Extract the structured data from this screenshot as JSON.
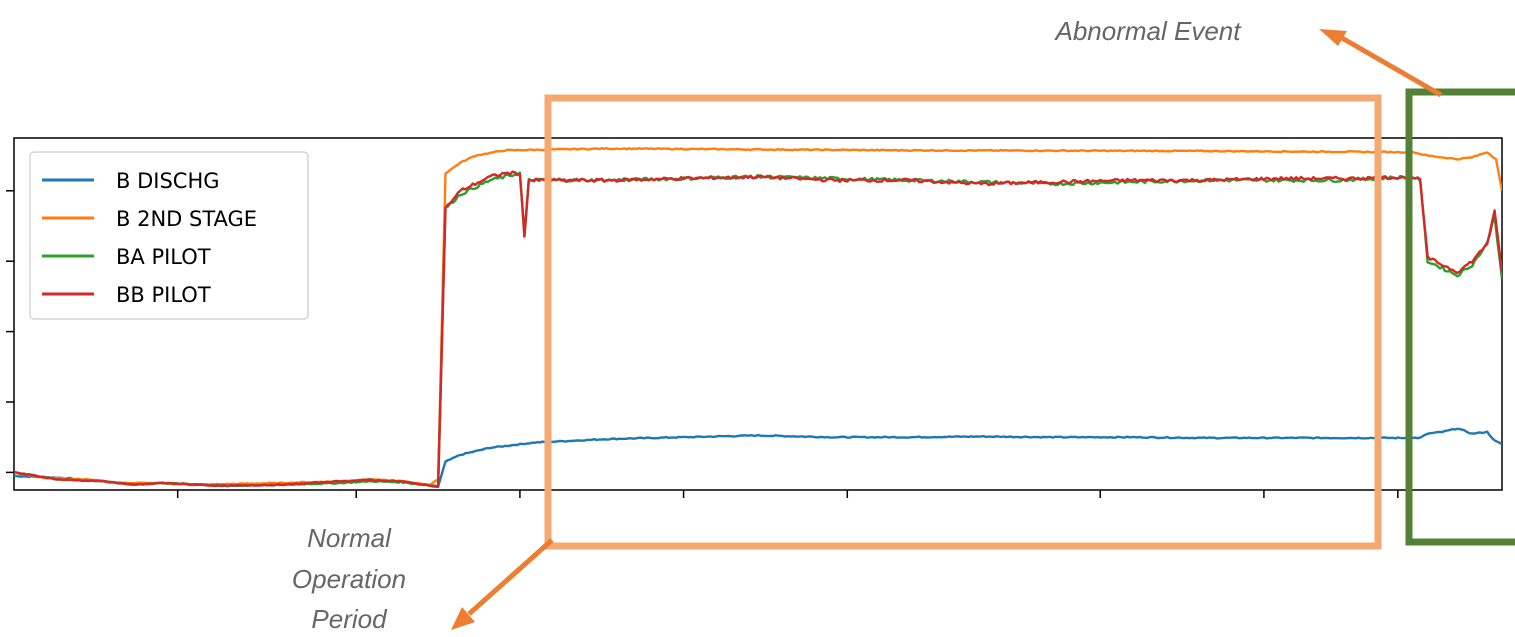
{
  "chart_data": {
    "type": "line",
    "title": "",
    "xlabel": "",
    "ylabel": "",
    "x_range": [
      0,
      100
    ],
    "ylim": [
      0,
      100
    ],
    "tick_labels_visible": false,
    "grid": false,
    "legend_position": "upper-left",
    "series": [
      {
        "name": "B DISCHG",
        "color": "#1f77b4",
        "points": [
          [
            0,
            4
          ],
          [
            3,
            3.5
          ],
          [
            6,
            2.5
          ],
          [
            8,
            1.5
          ],
          [
            10,
            2
          ],
          [
            14,
            1.2
          ],
          [
            18,
            1.5
          ],
          [
            22,
            2.5
          ],
          [
            24,
            3
          ],
          [
            26,
            2.5
          ],
          [
            27.5,
            1.5
          ],
          [
            28.5,
            1
          ],
          [
            29,
            8
          ],
          [
            30,
            10
          ],
          [
            32,
            12
          ],
          [
            35,
            13.5
          ],
          [
            40,
            14.5
          ],
          [
            45,
            15
          ],
          [
            50,
            15.5
          ],
          [
            55,
            15
          ],
          [
            60,
            15
          ],
          [
            65,
            15.2
          ],
          [
            70,
            15
          ],
          [
            75,
            15
          ],
          [
            80,
            14.8
          ],
          [
            94.5,
            14.8
          ],
          [
            95,
            16
          ],
          [
            96,
            16.5
          ],
          [
            97,
            17.5
          ],
          [
            98,
            16
          ],
          [
            99,
            16.5
          ],
          [
            99.5,
            14
          ],
          [
            100,
            13
          ]
        ]
      },
      {
        "name": "B 2ND STAGE",
        "color": "#ff7f0e",
        "points": [
          [
            0,
            5
          ],
          [
            2,
            3.5
          ],
          [
            5,
            3
          ],
          [
            7,
            2
          ],
          [
            9,
            2
          ],
          [
            12,
            1.5
          ],
          [
            18,
            2
          ],
          [
            22,
            2.5
          ],
          [
            24,
            3
          ],
          [
            26,
            2.5
          ],
          [
            28,
            1.5
          ],
          [
            28.5,
            3
          ],
          [
            29,
            90
          ],
          [
            30,
            93
          ],
          [
            31,
            95
          ],
          [
            33,
            96.5
          ],
          [
            40,
            97
          ],
          [
            60,
            96.5
          ],
          [
            80,
            96.3
          ],
          [
            93,
            96
          ],
          [
            94,
            96
          ],
          [
            95,
            95
          ],
          [
            97,
            94
          ],
          [
            98,
            94.5
          ],
          [
            99,
            96
          ],
          [
            99.6,
            94
          ],
          [
            100,
            85
          ]
        ]
      },
      {
        "name": "BA PILOT",
        "color": "#2ca02c",
        "points": [
          [
            0,
            5
          ],
          [
            3,
            3
          ],
          [
            6,
            2.5
          ],
          [
            8,
            1.5
          ],
          [
            10,
            2
          ],
          [
            14,
            1.2
          ],
          [
            18,
            1.5
          ],
          [
            22,
            2
          ],
          [
            24,
            2.5
          ],
          [
            26,
            2.2
          ],
          [
            27.5,
            1.5
          ],
          [
            28.5,
            1
          ],
          [
            29,
            80
          ],
          [
            30,
            84
          ],
          [
            31,
            86
          ],
          [
            32,
            88
          ],
          [
            33,
            89
          ],
          [
            34,
            90
          ],
          [
            34.3,
            72
          ],
          [
            34.6,
            88
          ],
          [
            40,
            88
          ],
          [
            50,
            89
          ],
          [
            60,
            88
          ],
          [
            70,
            87
          ],
          [
            80,
            88
          ],
          [
            85,
            88
          ],
          [
            89,
            88
          ],
          [
            94,
            89
          ],
          [
            94.5,
            88
          ],
          [
            95,
            65
          ],
          [
            96,
            63
          ],
          [
            97,
            61
          ],
          [
            98,
            64
          ],
          [
            99,
            70
          ],
          [
            99.5,
            78
          ],
          [
            100,
            60
          ]
        ]
      },
      {
        "name": "BB PILOT",
        "color": "#d62728",
        "points": [
          [
            0,
            5
          ],
          [
            3,
            3
          ],
          [
            6,
            2.5
          ],
          [
            8,
            1.5
          ],
          [
            10,
            2
          ],
          [
            14,
            1.2
          ],
          [
            18,
            1.5
          ],
          [
            22,
            2.5
          ],
          [
            24,
            2.8
          ],
          [
            26,
            2.5
          ],
          [
            27.5,
            1.5
          ],
          [
            28.5,
            1
          ],
          [
            29,
            80
          ],
          [
            30,
            85
          ],
          [
            31,
            87
          ],
          [
            32,
            89
          ],
          [
            33,
            90
          ],
          [
            34,
            90
          ],
          [
            34.3,
            72
          ],
          [
            34.6,
            88
          ],
          [
            40,
            88
          ],
          [
            45,
            88.5
          ],
          [
            50,
            89
          ],
          [
            55,
            88
          ],
          [
            60,
            88
          ],
          [
            65,
            87
          ],
          [
            70,
            87.5
          ],
          [
            75,
            88
          ],
          [
            80,
            88
          ],
          [
            85,
            88.5
          ],
          [
            90,
            88.5
          ],
          [
            94,
            89
          ],
          [
            94.5,
            88
          ],
          [
            95,
            66
          ],
          [
            96,
            64
          ],
          [
            97,
            62
          ],
          [
            98,
            65
          ],
          [
            99,
            70
          ],
          [
            99.5,
            79
          ],
          [
            100,
            62
          ]
        ]
      }
    ],
    "x_ticks": [
      11,
      23,
      34,
      45,
      56,
      73,
      84,
      93
    ],
    "y_ticks": [
      5,
      25,
      45,
      65,
      85
    ]
  },
  "annotations": {
    "abnormal_label": "Abnormal Event",
    "normal_line1": "Normal",
    "normal_line2": "Operation",
    "normal_line3": "Period",
    "normal_box_color": "#f4a872",
    "abnormal_box_color": "#538135",
    "arrow_color": "#ed7d31"
  }
}
